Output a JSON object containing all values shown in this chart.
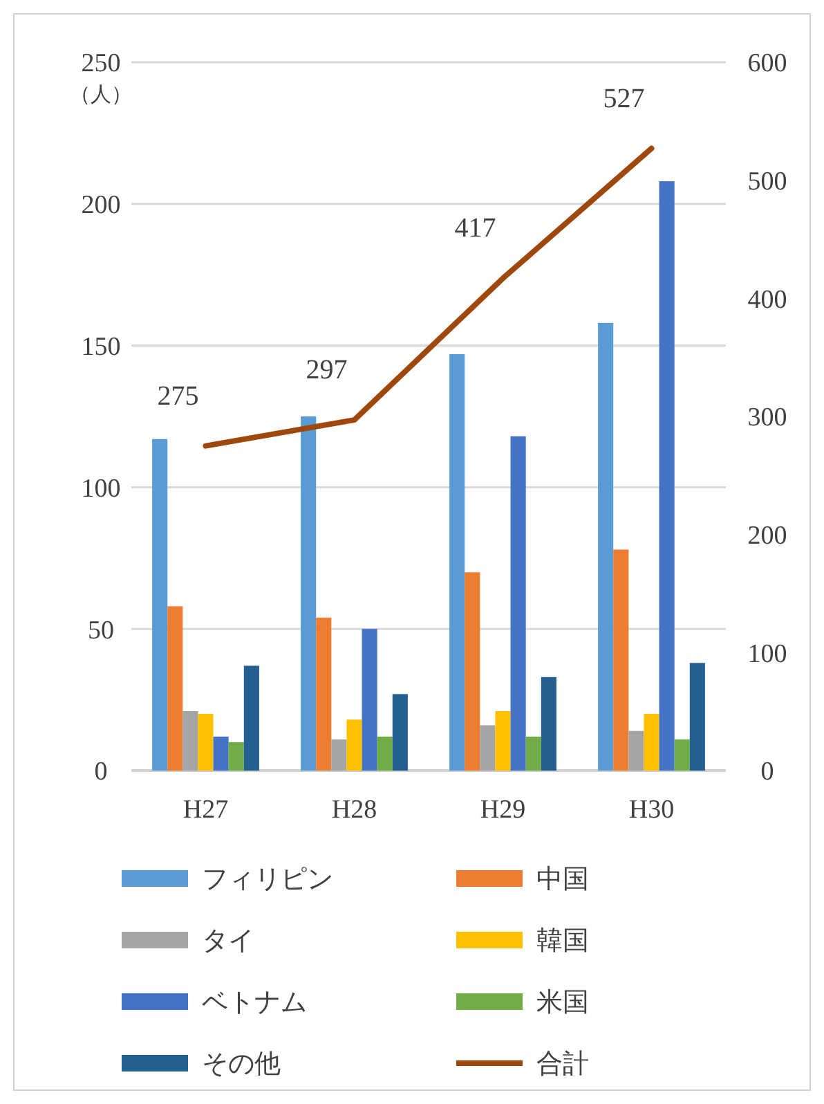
{
  "chart_data": {
    "type": "bar",
    "categories": [
      "H27",
      "H28",
      "H29",
      "H30"
    ],
    "series": [
      {
        "name": "フィリピン",
        "color": "#5b9bd5",
        "values": [
          117,
          125,
          147,
          158
        ]
      },
      {
        "name": "中国",
        "color": "#ed7d31",
        "values": [
          58,
          54,
          70,
          78
        ]
      },
      {
        "name": "タイ",
        "color": "#a5a5a5",
        "values": [
          21,
          11,
          16,
          14
        ]
      },
      {
        "name": "韓国",
        "color": "#ffc000",
        "values": [
          20,
          18,
          21,
          20
        ]
      },
      {
        "name": "ベトナム",
        "color": "#4472c4",
        "values": [
          12,
          50,
          118,
          208
        ]
      },
      {
        "name": "米国",
        "color": "#70ad47",
        "values": [
          10,
          12,
          12,
          11
        ]
      },
      {
        "name": "その他",
        "color": "#255e91",
        "values": [
          37,
          27,
          33,
          38
        ]
      },
      {
        "name": "合計",
        "type": "line",
        "axis": "y2",
        "color": "#9e480e",
        "values": [
          275,
          297,
          417,
          527
        ],
        "data_labels": true
      }
    ],
    "ylim": [
      0,
      250
    ],
    "yticks": [
      0,
      50,
      100,
      150,
      200,
      250
    ],
    "y2lim": [
      0,
      600
    ],
    "y2ticks": [
      0,
      100,
      200,
      300,
      400,
      500,
      600
    ],
    "annotations": [
      "（人）"
    ],
    "grid": "y",
    "legend": "bottom"
  }
}
